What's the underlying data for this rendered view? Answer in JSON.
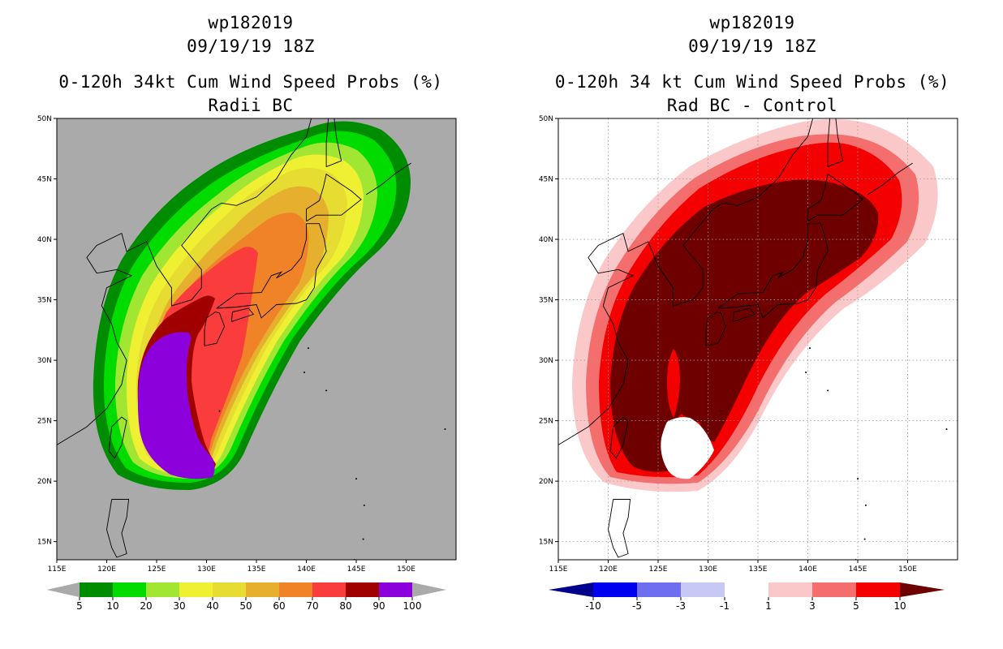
{
  "left_panel": {
    "title_line1": "wp182019",
    "title_line2": "09/19/19 18Z",
    "title_line3": "0-120h 34kt Cum Wind Speed Probs (%)",
    "title_line4": "Radii BC",
    "colorbar_labels": [
      "5",
      "10",
      "20",
      "30",
      "40",
      "50",
      "60",
      "70",
      "80",
      "90",
      "100"
    ],
    "colors": {
      "c5": "#008c00",
      "c10": "#00dc00",
      "c20": "#a0e632",
      "c30": "#f0f032",
      "c40": "#e6dc32",
      "c50": "#e6af2d",
      "c60": "#f08228",
      "c70": "#fa3c3c",
      "c80": "#a00000",
      "c90": "#8c00dc",
      "background": "#aaaaaa"
    }
  },
  "right_panel": {
    "title_line1": "wp182019",
    "title_line2": "09/19/19 18Z",
    "title_line3": "0-120h 34 kt Cum Wind Speed Probs (%)",
    "title_line4": "Rad BC - Control",
    "colorbar_labels": [
      "-10",
      "-5",
      "-3",
      "-1",
      "1",
      "3",
      "5",
      "10"
    ],
    "colors": {
      "n10": "#00008c",
      "n5": "#0000f0",
      "n3": "#6e6ef0",
      "n1": "#c8c8f5",
      "zero": "#ffffff",
      "p1": "#fac8c8",
      "p3": "#f56e6e",
      "p5": "#f50000",
      "p10": "#6e0000"
    }
  },
  "axes": {
    "lon_labels": [
      "115E",
      "120E",
      "125E",
      "130E",
      "135E",
      "140E",
      "145E",
      "150E"
    ],
    "lat_labels": [
      "50N",
      "45N",
      "40N",
      "35N",
      "30N",
      "25N",
      "20N",
      "15N"
    ]
  }
}
